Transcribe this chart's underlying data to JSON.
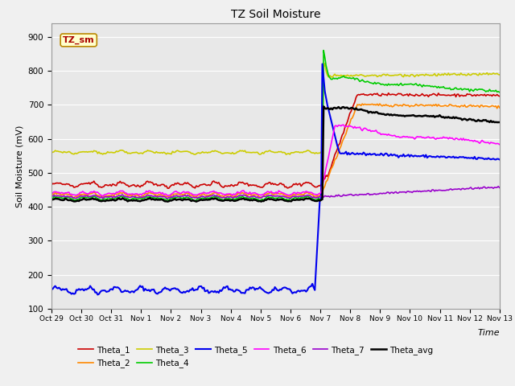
{
  "title": "TZ Soil Moisture",
  "xlabel": "Time",
  "ylabel": "Soil Moisture (mV)",
  "ylim": [
    100,
    940
  ],
  "yticks": [
    100,
    200,
    300,
    400,
    500,
    600,
    700,
    800,
    900
  ],
  "plot_bg": "#e8e8e8",
  "fig_bg": "#f0f0f0",
  "legend_label": "TZ_sm",
  "series": {
    "Theta_1": {
      "color": "#cc0000",
      "lw": 1.2
    },
    "Theta_2": {
      "color": "#ff8800",
      "lw": 1.2
    },
    "Theta_3": {
      "color": "#cccc00",
      "lw": 1.2
    },
    "Theta_4": {
      "color": "#00cc00",
      "lw": 1.2
    },
    "Theta_5": {
      "color": "#0000ee",
      "lw": 1.5
    },
    "Theta_6": {
      "color": "#ff00ff",
      "lw": 1.2
    },
    "Theta_7": {
      "color": "#9900cc",
      "lw": 1.2
    },
    "Theta_avg": {
      "color": "#000000",
      "lw": 1.8
    }
  },
  "tick_labels": [
    "Oct 29",
    "Oct 30",
    "Oct 31",
    "Nov 1",
    "Nov 2",
    "Nov 3",
    "Nov 4",
    "Nov 5",
    "Nov 6",
    "Nov 7",
    "Nov 8",
    "Nov 9",
    "Nov 10",
    "Nov 11",
    "Nov 12",
    "Nov 13"
  ],
  "n_before": 216,
  "n_after": 144,
  "seed": 42
}
